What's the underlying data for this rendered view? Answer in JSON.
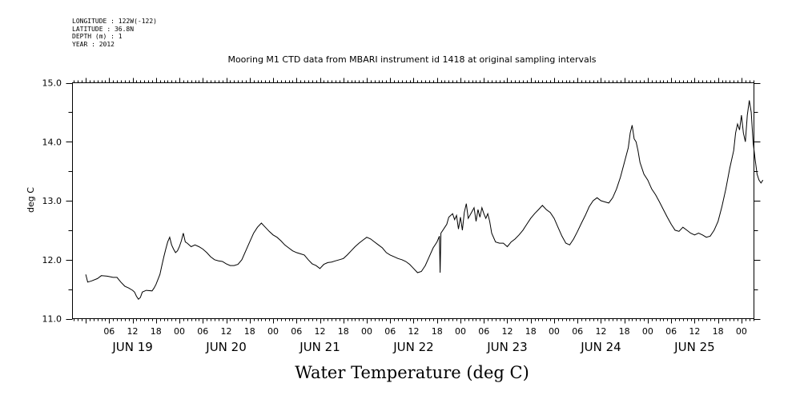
{
  "meta": {
    "longitude": "LONGITUDE : 122W(-122)",
    "latitude": "LATITUDE : 36.8N",
    "depth": "DEPTH (m) : 1",
    "year": "YEAR : 2012"
  },
  "chart_data": {
    "type": "line",
    "title": "Mooring M1 CTD data from MBARI instrument id 1418 at original sampling intervals",
    "xlabel": "Water Temperature (deg C)",
    "ylabel": "deg C",
    "ylim": [
      11.0,
      15.0
    ],
    "yticks": [
      "11.0",
      "12.0",
      "13.0",
      "14.0",
      "15.0"
    ],
    "xlim_hours": [
      0,
      164
    ],
    "xtick_labels": [
      "06",
      "12",
      "18",
      "00",
      "06",
      "12",
      "18",
      "00",
      "06",
      "12",
      "18",
      "00",
      "06",
      "12",
      "18",
      "00",
      "06",
      "12",
      "18",
      "00",
      "06",
      "12",
      "18",
      "00",
      "06",
      "12",
      "18",
      "00"
    ],
    "day_labels": [
      "JUN 19",
      "JUN 20",
      "JUN 21",
      "JUN 22",
      "JUN 23",
      "JUN 24",
      "JUN 25"
    ],
    "series": [
      {
        "points": [
          [
            0,
            11.75
          ],
          [
            0.5,
            11.62
          ],
          [
            1.5,
            11.64
          ],
          [
            3,
            11.68
          ],
          [
            4,
            11.73
          ],
          [
            5.5,
            11.72
          ],
          [
            7,
            11.7
          ],
          [
            8,
            11.7
          ],
          [
            9,
            11.62
          ],
          [
            10,
            11.55
          ],
          [
            11,
            11.52
          ],
          [
            12,
            11.48
          ],
          [
            12.5,
            11.45
          ],
          [
            13,
            11.38
          ],
          [
            13.5,
            11.33
          ],
          [
            14,
            11.36
          ],
          [
            14.5,
            11.45
          ],
          [
            15.5,
            11.48
          ],
          [
            17,
            11.47
          ],
          [
            17.5,
            11.52
          ],
          [
            18,
            11.58
          ],
          [
            19,
            11.75
          ],
          [
            19.5,
            11.9
          ],
          [
            20,
            12.05
          ],
          [
            20.5,
            12.18
          ],
          [
            21,
            12.3
          ],
          [
            21.5,
            12.38
          ],
          [
            22,
            12.25
          ],
          [
            22.5,
            12.18
          ],
          [
            23,
            12.12
          ],
          [
            23.5,
            12.15
          ],
          [
            24,
            12.22
          ],
          [
            24.5,
            12.32
          ],
          [
            25,
            12.45
          ],
          [
            25.5,
            12.3
          ],
          [
            26,
            12.28
          ],
          [
            27,
            12.22
          ],
          [
            28,
            12.25
          ],
          [
            29,
            12.22
          ],
          [
            30,
            12.18
          ],
          [
            31,
            12.12
          ],
          [
            32,
            12.05
          ],
          [
            33,
            12.0
          ],
          [
            34,
            11.98
          ],
          [
            35,
            11.97
          ],
          [
            36,
            11.93
          ],
          [
            37,
            11.9
          ],
          [
            38,
            11.9
          ],
          [
            39,
            11.92
          ],
          [
            40,
            12.0
          ],
          [
            41,
            12.15
          ],
          [
            42,
            12.3
          ],
          [
            43,
            12.45
          ],
          [
            44,
            12.55
          ],
          [
            45,
            12.62
          ],
          [
            46,
            12.55
          ],
          [
            47,
            12.48
          ],
          [
            48,
            12.42
          ],
          [
            49,
            12.38
          ],
          [
            50,
            12.32
          ],
          [
            51,
            12.25
          ],
          [
            52,
            12.2
          ],
          [
            53,
            12.15
          ],
          [
            54,
            12.12
          ],
          [
            55,
            12.1
          ],
          [
            56,
            12.08
          ],
          [
            57,
            12.0
          ],
          [
            58,
            11.93
          ],
          [
            59,
            11.9
          ],
          [
            60,
            11.85
          ],
          [
            61,
            11.92
          ],
          [
            62,
            11.95
          ],
          [
            63,
            11.96
          ],
          [
            64,
            11.98
          ],
          [
            65,
            12.0
          ],
          [
            66,
            12.02
          ],
          [
            67,
            12.08
          ],
          [
            68,
            12.15
          ],
          [
            69,
            12.22
          ],
          [
            70,
            12.28
          ],
          [
            71,
            12.33
          ],
          [
            72,
            12.38
          ],
          [
            73,
            12.35
          ],
          [
            74,
            12.3
          ],
          [
            75,
            12.25
          ],
          [
            76,
            12.2
          ],
          [
            77,
            12.12
          ],
          [
            78,
            12.08
          ],
          [
            79,
            12.05
          ],
          [
            80,
            12.02
          ],
          [
            81,
            12.0
          ],
          [
            82,
            11.97
          ],
          [
            83,
            11.92
          ],
          [
            84,
            11.85
          ],
          [
            85,
            11.78
          ],
          [
            86,
            11.8
          ],
          [
            87,
            11.9
          ],
          [
            88,
            12.05
          ],
          [
            89,
            12.2
          ],
          [
            90,
            12.3
          ],
          [
            90.6,
            12.4
          ],
          [
            90.8,
            11.78
          ],
          [
            91,
            12.45
          ],
          [
            92,
            12.55
          ],
          [
            92.5,
            12.6
          ],
          [
            93,
            12.72
          ],
          [
            94,
            12.78
          ],
          [
            94.5,
            12.68
          ],
          [
            95,
            12.75
          ],
          [
            95.5,
            12.52
          ],
          [
            96,
            12.72
          ],
          [
            96.5,
            12.5
          ],
          [
            97,
            12.8
          ],
          [
            97.5,
            12.95
          ],
          [
            98,
            12.7
          ],
          [
            99,
            12.82
          ],
          [
            99.5,
            12.88
          ],
          [
            100,
            12.65
          ],
          [
            100.5,
            12.85
          ],
          [
            101,
            12.72
          ],
          [
            101.5,
            12.88
          ],
          [
            102,
            12.78
          ],
          [
            102.5,
            12.7
          ],
          [
            103,
            12.78
          ],
          [
            103.5,
            12.65
          ],
          [
            104,
            12.45
          ],
          [
            105,
            12.3
          ],
          [
            106,
            12.28
          ],
          [
            107,
            12.28
          ],
          [
            108,
            12.22
          ],
          [
            109,
            12.3
          ],
          [
            110,
            12.35
          ],
          [
            111,
            12.42
          ],
          [
            112,
            12.5
          ],
          [
            113,
            12.6
          ],
          [
            114,
            12.7
          ],
          [
            115,
            12.78
          ],
          [
            116,
            12.85
          ],
          [
            117,
            12.92
          ],
          [
            118,
            12.85
          ],
          [
            119,
            12.8
          ],
          [
            120,
            12.7
          ],
          [
            121,
            12.55
          ],
          [
            122,
            12.4
          ],
          [
            123,
            12.28
          ],
          [
            124,
            12.25
          ],
          [
            125,
            12.35
          ],
          [
            126,
            12.48
          ],
          [
            127,
            12.62
          ],
          [
            128,
            12.75
          ],
          [
            129,
            12.9
          ],
          [
            130,
            13.0
          ],
          [
            131,
            13.05
          ],
          [
            132,
            13.0
          ],
          [
            133,
            12.98
          ],
          [
            134,
            12.96
          ],
          [
            135,
            13.05
          ],
          [
            136,
            13.2
          ],
          [
            137,
            13.4
          ],
          [
            138,
            13.65
          ],
          [
            139,
            13.9
          ],
          [
            139.5,
            14.15
          ],
          [
            140,
            14.28
          ],
          [
            140.5,
            14.05
          ],
          [
            141,
            14.0
          ],
          [
            141.5,
            13.85
          ],
          [
            142,
            13.65
          ],
          [
            143,
            13.45
          ],
          [
            144,
            13.35
          ],
          [
            145,
            13.2
          ],
          [
            146,
            13.1
          ],
          [
            147,
            12.98
          ],
          [
            148,
            12.85
          ],
          [
            149,
            12.72
          ],
          [
            150,
            12.6
          ],
          [
            151,
            12.5
          ],
          [
            152,
            12.48
          ],
          [
            153,
            12.55
          ],
          [
            154,
            12.5
          ],
          [
            155,
            12.45
          ],
          [
            156,
            12.42
          ],
          [
            157,
            12.45
          ],
          [
            158,
            12.42
          ],
          [
            159,
            12.38
          ],
          [
            160,
            12.4
          ],
          [
            161,
            12.5
          ],
          [
            162,
            12.65
          ],
          [
            163,
            12.9
          ],
          [
            164,
            13.2
          ],
          [
            165,
            13.55
          ],
          [
            166,
            13.85
          ],
          [
            166.5,
            14.15
          ],
          [
            167,
            14.3
          ],
          [
            167.5,
            14.2
          ],
          [
            168,
            14.45
          ],
          [
            168.5,
            14.15
          ],
          [
            169,
            14.0
          ],
          [
            169.5,
            14.45
          ],
          [
            170,
            14.7
          ],
          [
            170.5,
            14.5
          ],
          [
            171,
            13.98
          ],
          [
            171.5,
            13.7
          ],
          [
            172,
            13.45
          ],
          [
            172.5,
            13.35
          ],
          [
            173,
            13.3
          ],
          [
            173.5,
            13.35
          ]
        ]
      }
    ]
  }
}
